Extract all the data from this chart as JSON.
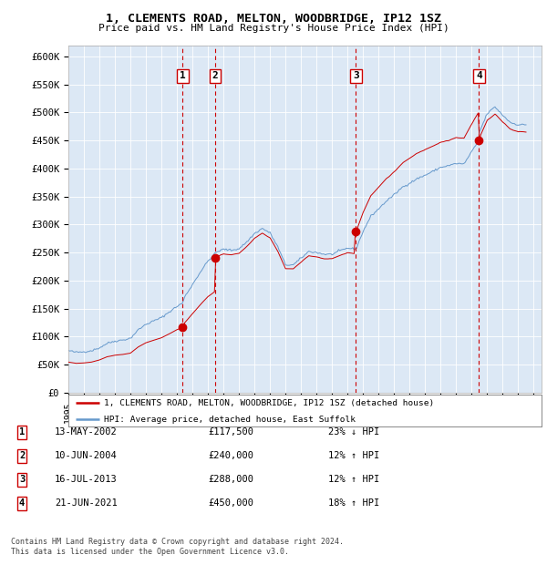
{
  "title": "1, CLEMENTS ROAD, MELTON, WOODBRIDGE, IP12 1SZ",
  "subtitle": "Price paid vs. HM Land Registry's House Price Index (HPI)",
  "ylim": [
    0,
    620000
  ],
  "yticks": [
    0,
    50000,
    100000,
    150000,
    200000,
    250000,
    300000,
    350000,
    400000,
    450000,
    500000,
    550000,
    600000
  ],
  "ytick_labels": [
    "£0",
    "£50K",
    "£100K",
    "£150K",
    "£200K",
    "£250K",
    "£300K",
    "£350K",
    "£400K",
    "£450K",
    "£500K",
    "£550K",
    "£600K"
  ],
  "plot_bg_color": "#dce8f5",
  "grid_color": "#ffffff",
  "red_line_color": "#cc0000",
  "blue_line_color": "#6699cc",
  "sale_marker_color": "#cc0000",
  "sales": [
    {
      "date_num": 2002.37,
      "price": 117500,
      "label": "1"
    },
    {
      "date_num": 2004.46,
      "price": 240000,
      "label": "2"
    },
    {
      "date_num": 2013.54,
      "price": 288000,
      "label": "3"
    },
    {
      "date_num": 2021.47,
      "price": 450000,
      "label": "4"
    }
  ],
  "sale_display": [
    {
      "num": "1",
      "date": "13-MAY-2002",
      "price": "£117,500",
      "pct": "23% ↓ HPI"
    },
    {
      "num": "2",
      "date": "10-JUN-2004",
      "price": "£240,000",
      "pct": "12% ↑ HPI"
    },
    {
      "num": "3",
      "date": "16-JUL-2013",
      "price": "£288,000",
      "pct": "12% ↑ HPI"
    },
    {
      "num": "4",
      "date": "21-JUN-2021",
      "price": "£450,000",
      "pct": "18% ↑ HPI"
    }
  ],
  "legend_red": "1, CLEMENTS ROAD, MELTON, WOODBRIDGE, IP12 1SZ (detached house)",
  "legend_blue": "HPI: Average price, detached house, East Suffolk",
  "footer": [
    "Contains HM Land Registry data © Crown copyright and database right 2024.",
    "This data is licensed under the Open Government Licence v3.0."
  ]
}
